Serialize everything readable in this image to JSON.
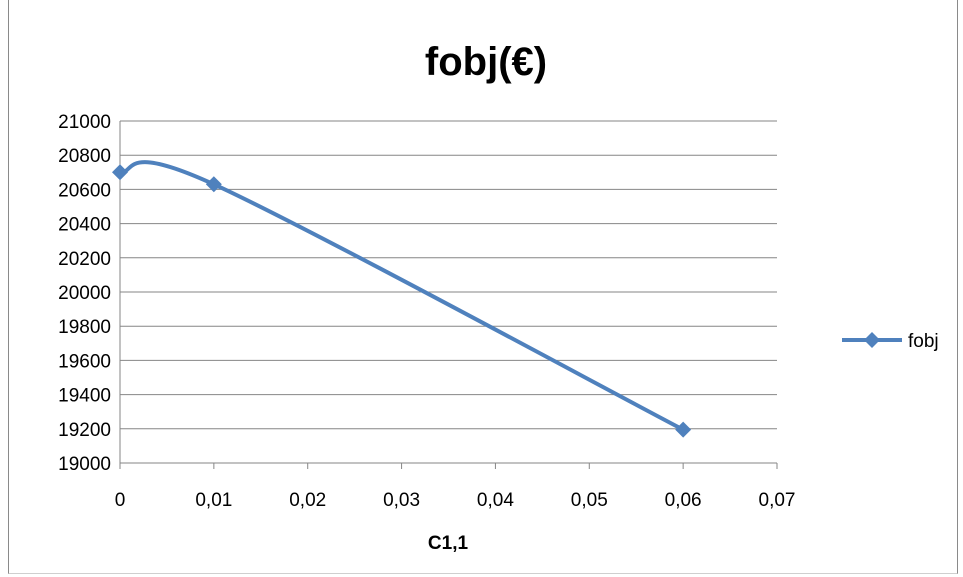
{
  "chart_data": {
    "type": "line",
    "title": "fobj(€)",
    "xlabel": "C1,1",
    "ylabel": "",
    "x": [
      0,
      0.01,
      0.06
    ],
    "series": [
      {
        "name": "fobj",
        "values": [
          20700,
          20630,
          19195
        ],
        "color": "#4F81BD",
        "marker": "diamond",
        "smooth": true
      }
    ],
    "xlim": [
      0,
      0.07
    ],
    "ylim": [
      19000,
      21000
    ],
    "x_ticks": [
      "0",
      "0,01",
      "0,02",
      "0,03",
      "0,04",
      "0,05",
      "0,06",
      "0,07"
    ],
    "y_ticks": [
      "19000",
      "19200",
      "19400",
      "19600",
      "19800",
      "20000",
      "20200",
      "20400",
      "20600",
      "20800",
      "21000"
    ],
    "grid": "horizontal major",
    "legend": "right"
  }
}
